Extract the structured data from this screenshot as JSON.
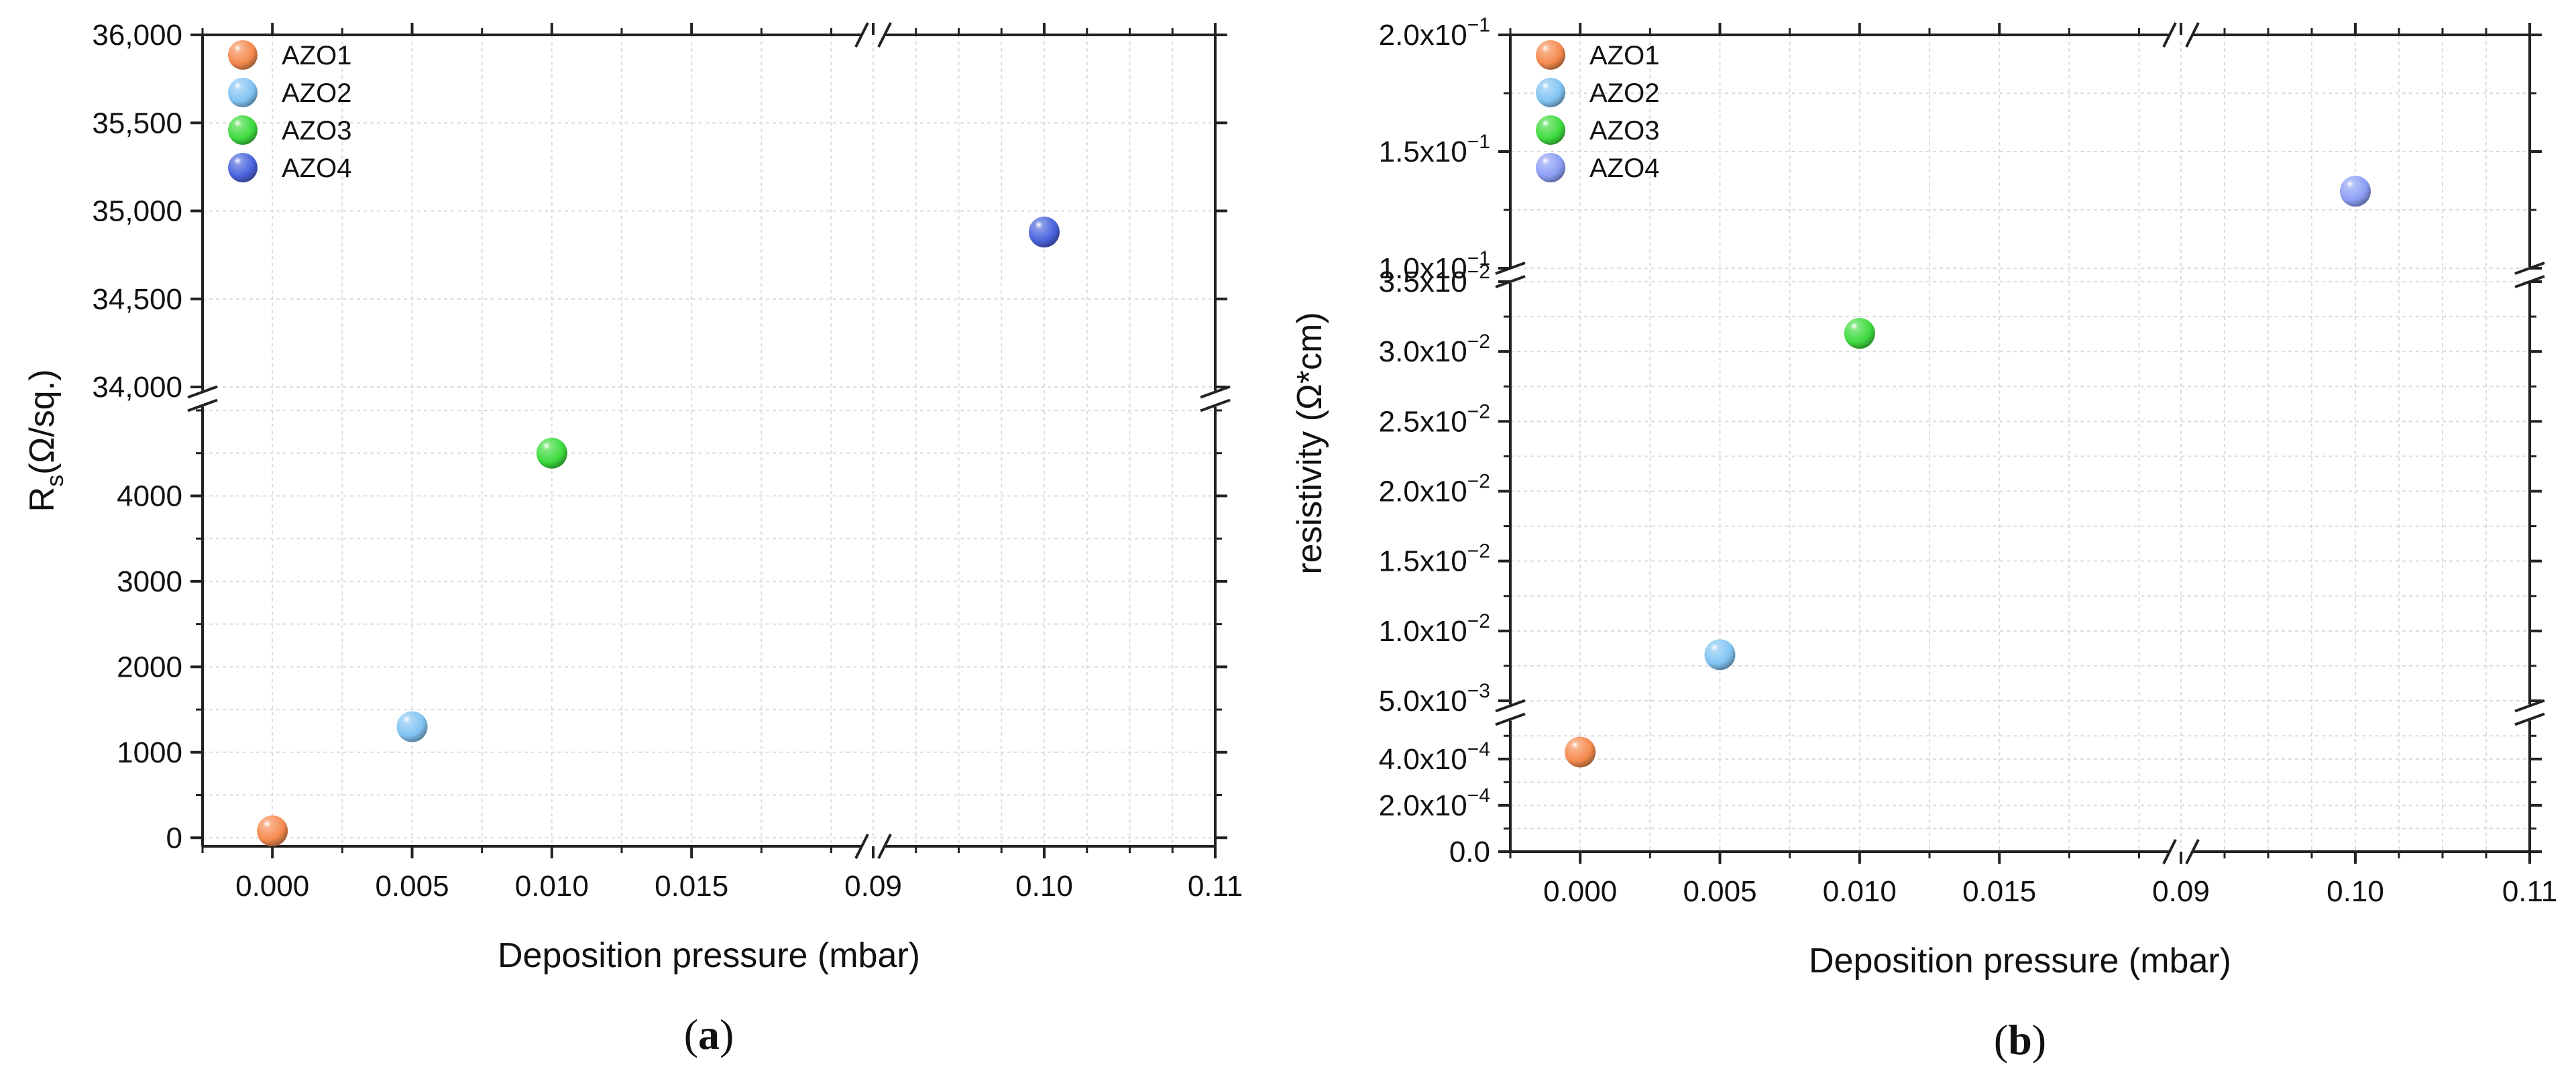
{
  "chart_data": [
    {
      "type": "scatter",
      "panel_label": "(a)",
      "panel_letter": "a",
      "xlabel": "Deposition pressure (mbar)",
      "ylabel_main": "R",
      "ylabel_sub": "s",
      "ylabel_tail": "(Ω/sq.)",
      "x_segments": [
        [
          -0.0025,
          0.0215
        ],
        [
          0.09,
          0.11
        ]
      ],
      "x_major_ticks": [
        0.0,
        0.005,
        0.01,
        0.015,
        0.09,
        0.1,
        0.11
      ],
      "x_tick_labels": [
        "0.000",
        "0.005",
        "0.010",
        "0.015",
        "0.09",
        "0.10",
        "0.11"
      ],
      "y_segments": [
        [
          -100,
          5000
        ],
        [
          34000,
          36000
        ]
      ],
      "y_major_ticks": [
        0,
        1000,
        2000,
        3000,
        4000,
        34000,
        34500,
        35000,
        35500,
        36000
      ],
      "y_tick_labels": [
        "0",
        "1000",
        "2000",
        "3000",
        "4000",
        "34,000",
        "34,500",
        "35,000",
        "35,500",
        "36,000"
      ],
      "grid": true,
      "legend_position": "top-left",
      "series": [
        {
          "name": "AZO1",
          "color": "#f58a4f",
          "x": 0.0,
          "y": 80
        },
        {
          "name": "AZO2",
          "color": "#82c4f2",
          "x": 0.005,
          "y": 1300
        },
        {
          "name": "AZO3",
          "color": "#3fdb3f",
          "x": 0.01,
          "y": 4500
        },
        {
          "name": "AZO4",
          "color": "#4a63dc",
          "x": 0.1,
          "y": 34880
        }
      ]
    },
    {
      "type": "scatter",
      "panel_label": "(b)",
      "panel_letter": "b",
      "xlabel": "Deposition pressure (mbar)",
      "ylabel": "resistivity (Ω*cm)",
      "x_segments": [
        [
          -0.0025,
          0.0215
        ],
        [
          0.09,
          0.11
        ]
      ],
      "x_major_ticks": [
        0.0,
        0.005,
        0.01,
        0.015,
        0.09,
        0.1,
        0.11
      ],
      "x_tick_labels": [
        "0.000",
        "0.005",
        "0.010",
        "0.015",
        "0.09",
        "0.10",
        "0.11"
      ],
      "y_segments": [
        [
          0,
          0.00055
        ],
        [
          0.005,
          0.035
        ],
        [
          0.1,
          0.2
        ]
      ],
      "y_major_ticks": [
        0,
        0.0002,
        0.0004,
        0.005,
        0.01,
        0.015,
        0.02,
        0.025,
        0.03,
        0.035,
        0.1,
        0.15,
        0.2
      ],
      "y_tick_mantissas": [
        "0.0",
        "2.0x10",
        "4.0x10",
        "5.0x10",
        "1.0x10",
        "1.5x10",
        "2.0x10",
        "2.5x10",
        "3.0x10",
        "3.5x10",
        "1.0x10",
        "1.5x10",
        "2.0x10"
      ],
      "y_tick_exponents": [
        "",
        "−4",
        "−4",
        "−3",
        "−2",
        "−2",
        "−2",
        "−2",
        "−2",
        "−2",
        "−1",
        "−1",
        "−1"
      ],
      "grid": true,
      "legend_position": "top-left",
      "series": [
        {
          "name": "AZO1",
          "color": "#f58a4f",
          "x": 0.0,
          "y": 0.00043
        },
        {
          "name": "AZO2",
          "color": "#82c4f2",
          "x": 0.005,
          "y": 0.0083
        },
        {
          "name": "AZO3",
          "color": "#3fdb3f",
          "x": 0.01,
          "y": 0.0313
        },
        {
          "name": "AZO4",
          "color": "#8c9ef5",
          "x": 0.1,
          "y": 0.133
        }
      ]
    }
  ]
}
